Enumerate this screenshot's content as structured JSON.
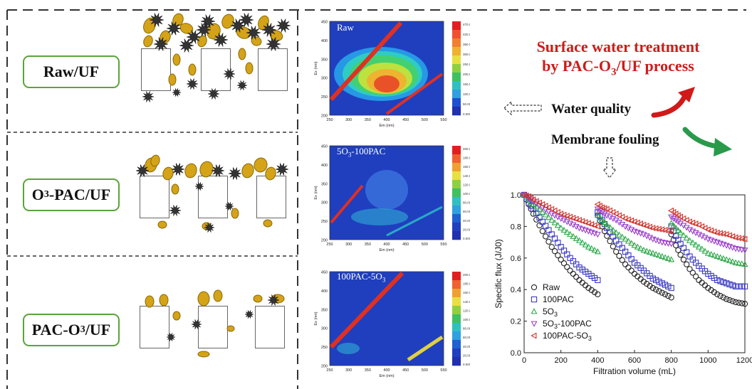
{
  "rows": [
    {
      "label": "Raw/UF"
    },
    {
      "label": "O3-PAC/UF",
      "parts": [
        "O",
        "3",
        "-PAC/UF"
      ]
    },
    {
      "label": "PAC-O3/UF",
      "parts": [
        "PAC-O",
        "3",
        "/UF"
      ]
    }
  ],
  "eem_panels": [
    {
      "title": "Raw",
      "title_parts": [
        "Raw",
        "",
        ""
      ],
      "scale_ticks": [
        "470.0",
        "420.0",
        "350.0",
        "300.0",
        "250.0",
        "200.0",
        "150.0",
        "100.0",
        "50.00",
        "0.000"
      ]
    },
    {
      "title": "5O3-100PAC",
      "title_parts": [
        "5O",
        "3",
        "-100PAC"
      ],
      "scale_ticks": [
        "200.0",
        "180.0",
        "160.0",
        "140.0",
        "120.0",
        "100.0",
        "80.00",
        "60.00",
        "40.00",
        "20.00",
        "0.000"
      ]
    },
    {
      "title": "100PAC-5O3",
      "title_parts": [
        "100PAC-5O",
        "3",
        ""
      ],
      "scale_ticks": [
        "200.0",
        "180.0",
        "160.0",
        "140.0",
        "120.0",
        "100.0",
        "80.00",
        "60.00",
        "40.00",
        "20.00",
        "0.000"
      ]
    }
  ],
  "eem_axes": {
    "ylabel": "Ex (nm)",
    "xlabel": "Em (nm)",
    "yticks": [
      "450",
      "400",
      "350",
      "300",
      "250",
      "200"
    ],
    "xticks": [
      "250",
      "300",
      "350",
      "400",
      "450",
      "500",
      "550"
    ]
  },
  "headline": {
    "line1": "Surface water treatment",
    "line2_parts": [
      "by PAC-O",
      "3",
      "/UF process"
    ]
  },
  "labels": {
    "water_quality": "Water quality",
    "membrane_fouling": "Membrane fouling"
  },
  "chart_data": {
    "type": "scatter",
    "title": "",
    "xlabel": "Filtration volume (mL)",
    "ylabel": "Specific flux (J/J0)",
    "xlim": [
      0,
      1200
    ],
    "ylim": [
      0,
      1.0
    ],
    "xticks": [
      0,
      200,
      400,
      600,
      800,
      1000,
      1200
    ],
    "yticks": [
      0.0,
      0.2,
      0.4,
      0.6,
      0.8,
      1.0
    ],
    "legend_position": "bottom-left",
    "series": [
      {
        "name": "Raw",
        "name_parts": [
          "Raw",
          "",
          ""
        ],
        "marker": "circle",
        "color": "#222222",
        "cycles": [
          {
            "x": [
              0,
              25,
              50,
              100,
              150,
              200,
              250,
              300,
              350,
              400
            ],
            "y": [
              1.0,
              0.94,
              0.88,
              0.77,
              0.67,
              0.59,
              0.52,
              0.46,
              0.41,
              0.37
            ]
          },
          {
            "x": [
              400,
              425,
              450,
              500,
              550,
              600,
              650,
              700,
              750,
              800
            ],
            "y": [
              0.87,
              0.8,
              0.74,
              0.64,
              0.56,
              0.5,
              0.45,
              0.41,
              0.38,
              0.35
            ]
          },
          {
            "x": [
              800,
              825,
              850,
              900,
              950,
              1000,
              1050,
              1100,
              1150,
              1200
            ],
            "y": [
              0.75,
              0.68,
              0.62,
              0.53,
              0.46,
              0.41,
              0.37,
              0.34,
              0.32,
              0.31
            ]
          }
        ]
      },
      {
        "name": "100PAC",
        "name_parts": [
          "100PAC",
          "",
          ""
        ],
        "marker": "square",
        "color": "#3b3bc4",
        "cycles": [
          {
            "x": [
              0,
              25,
              50,
              100,
              150,
              200,
              250,
              300,
              350,
              400
            ],
            "y": [
              1.0,
              0.95,
              0.91,
              0.83,
              0.75,
              0.67,
              0.6,
              0.54,
              0.5,
              0.46
            ]
          },
          {
            "x": [
              400,
              425,
              450,
              500,
              550,
              600,
              650,
              700,
              750,
              800
            ],
            "y": [
              0.89,
              0.84,
              0.79,
              0.71,
              0.64,
              0.57,
              0.52,
              0.47,
              0.44,
              0.41
            ]
          },
          {
            "x": [
              800,
              825,
              850,
              900,
              950,
              1000,
              1050,
              1100,
              1150,
              1200
            ],
            "y": [
              0.8,
              0.74,
              0.69,
              0.61,
              0.55,
              0.5,
              0.46,
              0.44,
              0.42,
              0.42
            ]
          }
        ]
      },
      {
        "name": "5O3",
        "name_parts": [
          "5O",
          "3",
          ""
        ],
        "marker": "triangle",
        "color": "#2fa84a",
        "cycles": [
          {
            "x": [
              0,
              25,
              50,
              100,
              150,
              200,
              250,
              300,
              350,
              400
            ],
            "y": [
              1.0,
              0.97,
              0.94,
              0.89,
              0.84,
              0.79,
              0.75,
              0.71,
              0.67,
              0.64
            ]
          },
          {
            "x": [
              400,
              425,
              450,
              500,
              550,
              600,
              650,
              700,
              750,
              800
            ],
            "y": [
              0.87,
              0.84,
              0.81,
              0.76,
              0.72,
              0.68,
              0.65,
              0.63,
              0.61,
              0.59
            ]
          },
          {
            "x": [
              800,
              825,
              850,
              900,
              950,
              1000,
              1050,
              1100,
              1150,
              1200
            ],
            "y": [
              0.82,
              0.79,
              0.76,
              0.71,
              0.67,
              0.63,
              0.61,
              0.59,
              0.57,
              0.56
            ]
          }
        ]
      },
      {
        "name": "5O3-100PAC",
        "name_parts": [
          "5O",
          "3",
          "-100PAC"
        ],
        "marker": "triangle-down",
        "color": "#9a3dc9",
        "cycles": [
          {
            "x": [
              0,
              25,
              50,
              100,
              150,
              200,
              250,
              300,
              350,
              400
            ],
            "y": [
              1.0,
              0.98,
              0.96,
              0.92,
              0.88,
              0.85,
              0.82,
              0.79,
              0.77,
              0.75
            ]
          },
          {
            "x": [
              400,
              425,
              450,
              500,
              550,
              600,
              650,
              700,
              750,
              800
            ],
            "y": [
              0.91,
              0.89,
              0.87,
              0.84,
              0.8,
              0.77,
              0.75,
              0.72,
              0.7,
              0.69
            ]
          },
          {
            "x": [
              800,
              825,
              850,
              900,
              950,
              1000,
              1050,
              1100,
              1150,
              1200
            ],
            "y": [
              0.86,
              0.84,
              0.82,
              0.78,
              0.75,
              0.72,
              0.7,
              0.68,
              0.66,
              0.65
            ]
          }
        ]
      },
      {
        "name": "100PAC-5O3",
        "name_parts": [
          "100PAC-5O",
          "3",
          ""
        ],
        "marker": "triangle-left",
        "color": "#d0342c",
        "cycles": [
          {
            "x": [
              0,
              25,
              50,
              100,
              150,
              200,
              250,
              300,
              350,
              400
            ],
            "y": [
              1.0,
              0.99,
              0.97,
              0.94,
              0.91,
              0.88,
              0.86,
              0.84,
              0.82,
              0.8
            ]
          },
          {
            "x": [
              400,
              425,
              450,
              500,
              550,
              600,
              650,
              700,
              750,
              800
            ],
            "y": [
              0.94,
              0.92,
              0.91,
              0.88,
              0.85,
              0.83,
              0.81,
              0.79,
              0.78,
              0.77
            ]
          },
          {
            "x": [
              800,
              825,
              850,
              900,
              950,
              1000,
              1050,
              1100,
              1150,
              1200
            ],
            "y": [
              0.9,
              0.88,
              0.86,
              0.83,
              0.81,
              0.78,
              0.76,
              0.75,
              0.73,
              0.72
            ]
          }
        ]
      }
    ]
  },
  "colors": {
    "accent_red": "#d01a1a",
    "accent_green": "#5aa43a",
    "eem_background": "#1f3fbf"
  }
}
